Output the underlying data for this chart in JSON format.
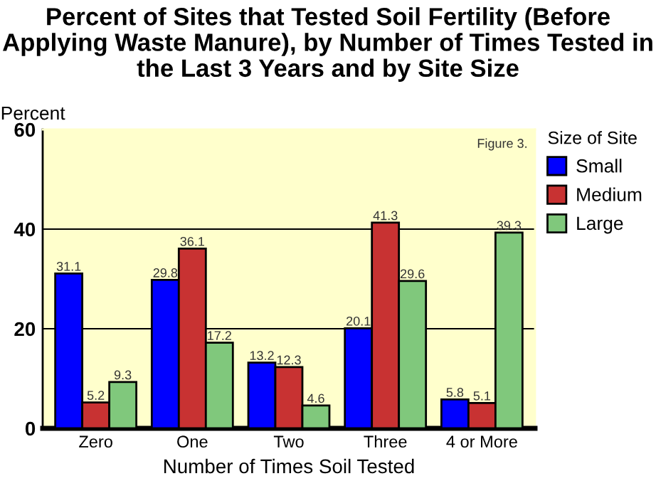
{
  "chart_data": {
    "type": "bar",
    "title": "Percent of Sites that Tested Soil Fertility (Before Applying Waste Manure), by Number of Times Tested in the Last 3 Years and by Site Size",
    "xlabel": "Number of Times Soil Tested",
    "ylabel": "Percent",
    "legend_title": "Size of Site",
    "categories": [
      "Zero",
      "One",
      "Two",
      "Three",
      "4 or More"
    ],
    "series": [
      {
        "name": "Small",
        "color": "#0000ff",
        "values": [
          31.1,
          29.8,
          13.2,
          20.1,
          5.8
        ]
      },
      {
        "name": "Medium",
        "color": "#c83232",
        "values": [
          5.2,
          36.1,
          12.3,
          41.3,
          5.1
        ]
      },
      {
        "name": "Large",
        "color": "#80c87c",
        "values": [
          9.3,
          17.2,
          4.6,
          29.6,
          39.3
        ]
      }
    ],
    "ylim": [
      0,
      60
    ],
    "yticks": [
      0,
      20,
      40,
      60
    ],
    "grid": "y",
    "legend": "right",
    "data_labels": true,
    "annotations": [
      "Figure 3."
    ]
  }
}
